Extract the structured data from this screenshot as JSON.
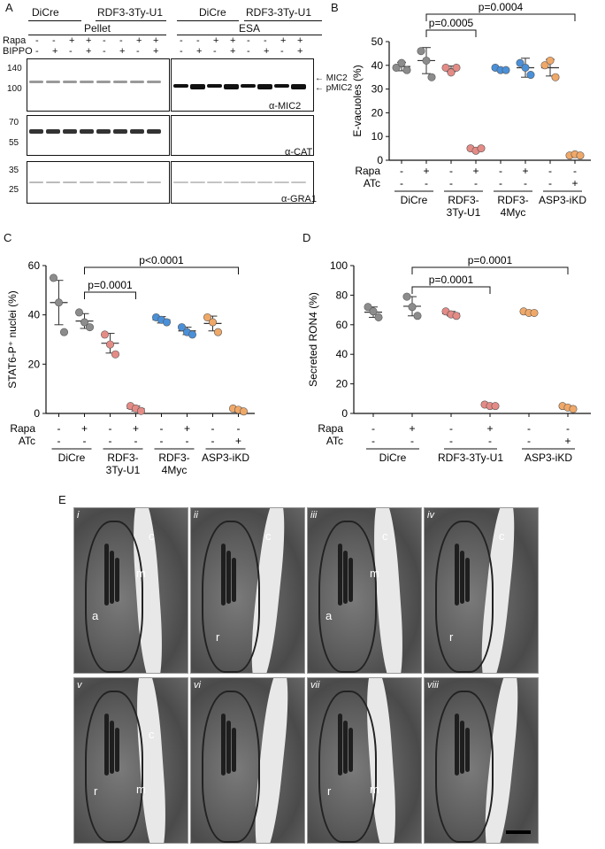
{
  "panels": {
    "A": {
      "letter": "A",
      "groups_top": [
        "DiCre",
        "RDF3-3Ty-U1",
        "DiCre",
        "RDF3-3Ty-U1"
      ],
      "fractions": [
        "Pellet",
        "ESA"
      ],
      "row_labels": [
        "Rapa",
        "BIPPO"
      ],
      "rapa_signs": [
        "-",
        "-",
        "+",
        "+",
        "-",
        "-",
        "+",
        "+",
        "-",
        "-",
        "+",
        "+",
        "-",
        "-",
        "+",
        "+"
      ],
      "bippo_signs": [
        "-",
        "+",
        "-",
        "+",
        "-",
        "+",
        "-",
        "+",
        "-",
        "+",
        "-",
        "+",
        "-",
        "+",
        "-",
        "+"
      ],
      "mw_mic2": [
        "140",
        "100"
      ],
      "mw_cat": [
        "70",
        "55"
      ],
      "mw_gra1": [
        "35",
        "25"
      ],
      "band_labels": [
        "MIC2",
        "pMIC2"
      ],
      "antibodies": [
        "α-MIC2",
        "α-CAT",
        "α-GRA1"
      ]
    },
    "B": {
      "letter": "B"
    },
    "C": {
      "letter": "C"
    },
    "D": {
      "letter": "D"
    },
    "E": {
      "letter": "E",
      "subpanels": [
        "i",
        "ii",
        "iii",
        "iv",
        "v",
        "vi",
        "vii",
        "viii"
      ],
      "organelle_labels": {
        "i": [
          "c",
          "m",
          "a"
        ],
        "ii": [
          "c",
          "r"
        ],
        "iii": [
          "c",
          "m",
          "a"
        ],
        "iv": [
          "c",
          "r"
        ],
        "v": [
          "c",
          "r",
          "m"
        ],
        "vi": [],
        "vii": [
          "r",
          "m"
        ],
        "viii": []
      }
    }
  },
  "chart_data": [
    {
      "type": "scatter",
      "panel": "B",
      "ylabel": "E-vacuoles (%)",
      "ylim": [
        0,
        50
      ],
      "yticks": [
        0,
        10,
        20,
        30,
        40,
        50
      ],
      "row_labels": [
        "Rapa",
        "ATc"
      ],
      "rapa_signs": [
        "-",
        "+",
        "-",
        "+",
        "-",
        "+",
        "-",
        "-"
      ],
      "atc_signs": [
        "-",
        "-",
        "-",
        "-",
        "-",
        "-",
        "-",
        "+"
      ],
      "group_labels": [
        "DiCre",
        "RDF3-\n3Ty-U1",
        "RDF3-\n4Myc",
        "ASP3-iKD"
      ],
      "series": [
        {
          "color": "#8c8c8c",
          "values": [
            39,
            41,
            38
          ],
          "mean": 39.5,
          "sd": 1.8
        },
        {
          "color": "#8c8c8c",
          "values": [
            46,
            42,
            35
          ],
          "mean": 42,
          "sd": 5.5
        },
        {
          "color": "#e58b86",
          "values": [
            39,
            37,
            39
          ],
          "mean": 38.5,
          "sd": 1.2
        },
        {
          "color": "#e58b86",
          "values": [
            5,
            4,
            5
          ],
          "mean": 4.7,
          "sd": 0.6
        },
        {
          "color": "#4a90d9",
          "values": [
            39,
            38,
            38
          ],
          "mean": 38.3,
          "sd": 0.6
        },
        {
          "color": "#4a90d9",
          "values": [
            41,
            39,
            36
          ],
          "mean": 39,
          "sd": 4
        },
        {
          "color": "#f0a868",
          "values": [
            40,
            42,
            35
          ],
          "mean": 39,
          "sd": 3.5
        },
        {
          "color": "#f0a868",
          "values": [
            2,
            2.5,
            2
          ],
          "mean": 2.2,
          "sd": 0.3
        }
      ],
      "comparisons": [
        {
          "from": 1,
          "to": 3,
          "label": "p=0.0005"
        },
        {
          "from": 1,
          "to": 7,
          "label": "p=0.0004"
        }
      ]
    },
    {
      "type": "scatter",
      "panel": "C",
      "ylabel": "STAT6-P⁺ nuclei (%)",
      "ylim": [
        0,
        60
      ],
      "yticks": [
        0,
        20,
        40,
        60
      ],
      "row_labels": [
        "Rapa",
        "ATc"
      ],
      "rapa_signs": [
        "-",
        "+",
        "-",
        "+",
        "-",
        "+",
        "-",
        "-"
      ],
      "atc_signs": [
        "-",
        "-",
        "-",
        "-",
        "-",
        "-",
        "-",
        "+"
      ],
      "group_labels": [
        "DiCre",
        "RDF3-\n3Ty-U1",
        "RDF3-\n4Myc",
        "ASP3-iKD"
      ],
      "series": [
        {
          "color": "#8c8c8c",
          "values": [
            55,
            45,
            33
          ],
          "mean": 45,
          "sd": 9
        },
        {
          "color": "#8c8c8c",
          "values": [
            41,
            37,
            35
          ],
          "mean": 37.5,
          "sd": 3
        },
        {
          "color": "#e58b86",
          "values": [
            32,
            28,
            24
          ],
          "mean": 28.5,
          "sd": 4
        },
        {
          "color": "#e58b86",
          "values": [
            3,
            2,
            1
          ],
          "mean": 2,
          "sd": 1
        },
        {
          "color": "#4a90d9",
          "values": [
            39,
            38,
            37
          ],
          "mean": 38,
          "sd": 1.3
        },
        {
          "color": "#4a90d9",
          "values": [
            35,
            33,
            32
          ],
          "mean": 33.5,
          "sd": 1.5
        },
        {
          "color": "#f0a868",
          "values": [
            39,
            37,
            33
          ],
          "mean": 36.5,
          "sd": 3
        },
        {
          "color": "#f0a868",
          "values": [
            2,
            1.5,
            0.8
          ],
          "mean": 1.4,
          "sd": 0.8
        }
      ],
      "comparisons": [
        {
          "from": 1,
          "to": 3,
          "label": "p=0.0001"
        },
        {
          "from": 1,
          "to": 7,
          "label": "p<0.0001"
        }
      ]
    },
    {
      "type": "scatter",
      "panel": "D",
      "ylabel": "Secreted RON4 (%)",
      "ylim": [
        0,
        100
      ],
      "yticks": [
        0,
        20,
        40,
        60,
        80,
        100
      ],
      "row_labels": [
        "Rapa",
        "ATc"
      ],
      "rapa_signs": [
        "-",
        "+",
        "-",
        "+",
        "-",
        "-"
      ],
      "atc_signs": [
        "-",
        "-",
        "-",
        "-",
        "-",
        "+"
      ],
      "group_labels": [
        "DiCre",
        "RDF3-3Ty-U1",
        "ASP3-iKD"
      ],
      "series": [
        {
          "color": "#8c8c8c",
          "values": [
            72,
            69,
            65
          ],
          "mean": 68.5,
          "sd": 3.5
        },
        {
          "color": "#8c8c8c",
          "values": [
            79,
            72,
            66
          ],
          "mean": 72.5,
          "sd": 6.5
        },
        {
          "color": "#e58b86",
          "values": [
            69,
            67,
            66
          ],
          "mean": 67.5,
          "sd": 1.5
        },
        {
          "color": "#e58b86",
          "values": [
            6,
            5,
            5
          ],
          "mean": 5.5,
          "sd": 0.8
        },
        {
          "color": "#f0a868",
          "values": [
            69,
            68,
            68
          ],
          "mean": 68.3,
          "sd": 0.5
        },
        {
          "color": "#f0a868",
          "values": [
            5,
            4,
            3
          ],
          "mean": 4,
          "sd": 1
        }
      ],
      "comparisons": [
        {
          "from": 1,
          "to": 3,
          "label": "p=0.0001"
        },
        {
          "from": 1,
          "to": 5,
          "label": "p=0.0001"
        }
      ]
    }
  ]
}
